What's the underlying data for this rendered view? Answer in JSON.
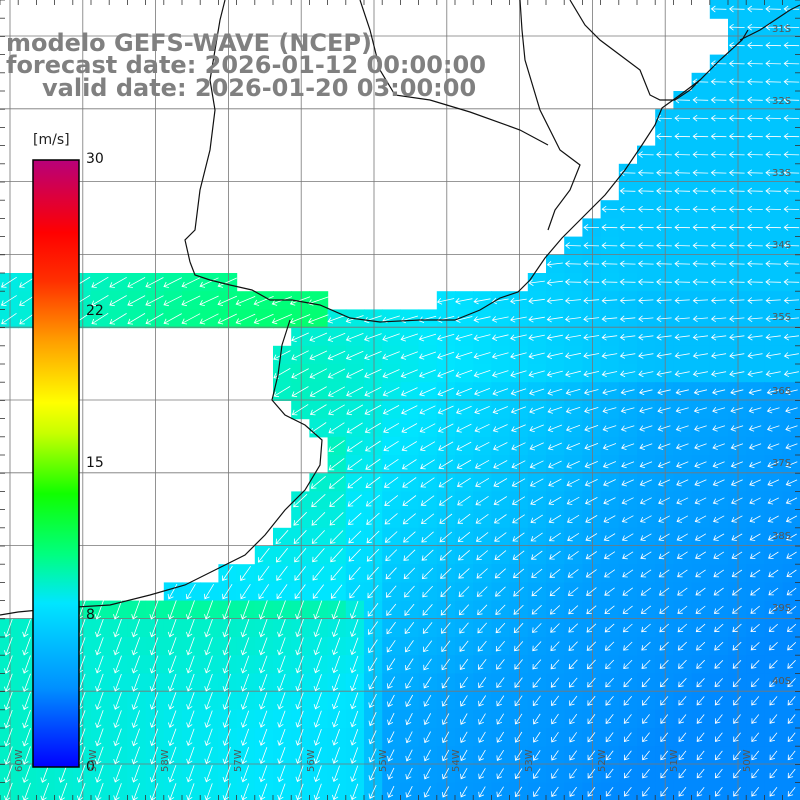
{
  "title": {
    "model": "modelo GEFS-WAVE (NCEP)",
    "forecast": "forecast date: 2026-01-12 00:00:00",
    "valid": "valid date: 2026-01-20 03:00:00"
  },
  "colorbar": {
    "unit": "[m/s]",
    "ticks": [
      {
        "label": "30",
        "value": 30
      },
      {
        "label": "22",
        "value": 22
      },
      {
        "label": "15",
        "value": 15
      },
      {
        "label": "8",
        "value": 8
      },
      {
        "label": "0",
        "value": 0
      }
    ],
    "min": 0,
    "max": 30,
    "colors": [
      "#0000ff",
      "#0090ff",
      "#00e6ff",
      "#00ff60",
      "#30ff00",
      "#c8ff00",
      "#ffff00",
      "#ffa000",
      "#ff4000",
      "#ff0000",
      "#e0005a",
      "#b8007a"
    ]
  },
  "map": {
    "projection": "lat-lon",
    "lon_range": [
      -60,
      -49
    ],
    "lat_range": [
      -41.5,
      -30.8
    ],
    "grid": true,
    "lat_labels": [
      "31S",
      "32S",
      "33S",
      "34S",
      "35S",
      "36S",
      "37S",
      "38S",
      "39S",
      "40S"
    ],
    "lon_labels": [
      "60W",
      "59W",
      "58W",
      "57W",
      "56W",
      "55W",
      "54W",
      "53W",
      "52W",
      "51W",
      "50W"
    ],
    "field": "surface wind speed with direction arrows",
    "general_wind_direction": "from east / north-east over the open ocean, from north-north-east near the coast"
  }
}
